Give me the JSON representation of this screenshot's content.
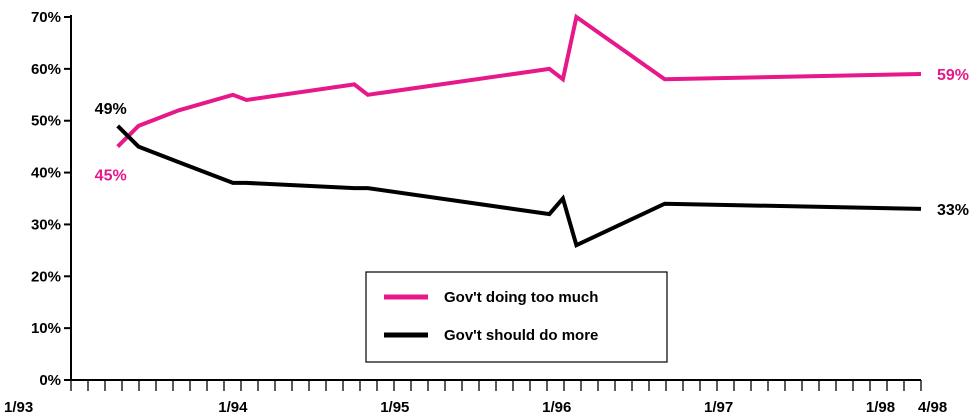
{
  "chart_data": {
    "type": "line",
    "title": "",
    "xlabel": "",
    "ylabel": "",
    "ylim": [
      0,
      70
    ],
    "y_ticks": [
      {
        "value": 0,
        "label": "0%"
      },
      {
        "value": 10,
        "label": "10%"
      },
      {
        "value": 20,
        "label": "20%"
      },
      {
        "value": 30,
        "label": "30%"
      },
      {
        "value": 40,
        "label": "40%"
      },
      {
        "value": 50,
        "label": "50%"
      },
      {
        "value": 60,
        "label": "60%"
      },
      {
        "value": 70,
        "label": "70%"
      }
    ],
    "x_range": [
      "1993-01-01",
      "1998-04-01"
    ],
    "x_ticks": [
      {
        "date": "1993-01-01",
        "label": "1/93"
      },
      {
        "date": "1994-01-01",
        "label": "1/94"
      },
      {
        "date": "1995-01-01",
        "label": "1/95"
      },
      {
        "date": "1996-01-01",
        "label": "1/96"
      },
      {
        "date": "1997-01-01",
        "label": "1/97"
      },
      {
        "date": "1998-01-01",
        "label": "1/98"
      },
      {
        "date": "1998-04-01",
        "label": "4/98"
      }
    ],
    "grid": false,
    "legend_position": "bottom-center",
    "series": [
      {
        "name": "Gov't doing too much",
        "color": "#e6188a",
        "points": [
          {
            "x": "1993-04-15",
            "y": 45
          },
          {
            "x": "1993-06-01",
            "y": 49
          },
          {
            "x": "1993-09-01",
            "y": 52
          },
          {
            "x": "1994-01-01",
            "y": 55
          },
          {
            "x": "1994-02-01",
            "y": 54
          },
          {
            "x": "1994-10-01",
            "y": 57
          },
          {
            "x": "1994-11-01",
            "y": 55
          },
          {
            "x": "1995-12-15",
            "y": 60
          },
          {
            "x": "1996-01-15",
            "y": 58
          },
          {
            "x": "1996-02-15",
            "y": 70
          },
          {
            "x": "1996-09-01",
            "y": 58
          },
          {
            "x": "1998-04-01",
            "y": 59
          }
        ]
      },
      {
        "name": "Gov't should do more",
        "color": "#000000",
        "points": [
          {
            "x": "1993-04-15",
            "y": 49
          },
          {
            "x": "1993-06-01",
            "y": 45
          },
          {
            "x": "1993-09-01",
            "y": 42
          },
          {
            "x": "1994-01-01",
            "y": 38
          },
          {
            "x": "1994-02-01",
            "y": 38
          },
          {
            "x": "1994-10-01",
            "y": 37
          },
          {
            "x": "1994-11-01",
            "y": 37
          },
          {
            "x": "1995-12-15",
            "y": 32
          },
          {
            "x": "1996-01-15",
            "y": 35
          },
          {
            "x": "1996-02-15",
            "y": 26
          },
          {
            "x": "1996-09-01",
            "y": 34
          },
          {
            "x": "1998-04-01",
            "y": 33
          }
        ]
      }
    ],
    "annotations": [
      {
        "text": "45%",
        "color": "#e6188a",
        "anchor": "start-pink"
      },
      {
        "text": "49%",
        "color": "#000000",
        "anchor": "start-black"
      },
      {
        "text": "59%",
        "color": "#e6188a",
        "anchor": "end-pink"
      },
      {
        "text": "33%",
        "color": "#000000",
        "anchor": "end-black"
      }
    ]
  }
}
